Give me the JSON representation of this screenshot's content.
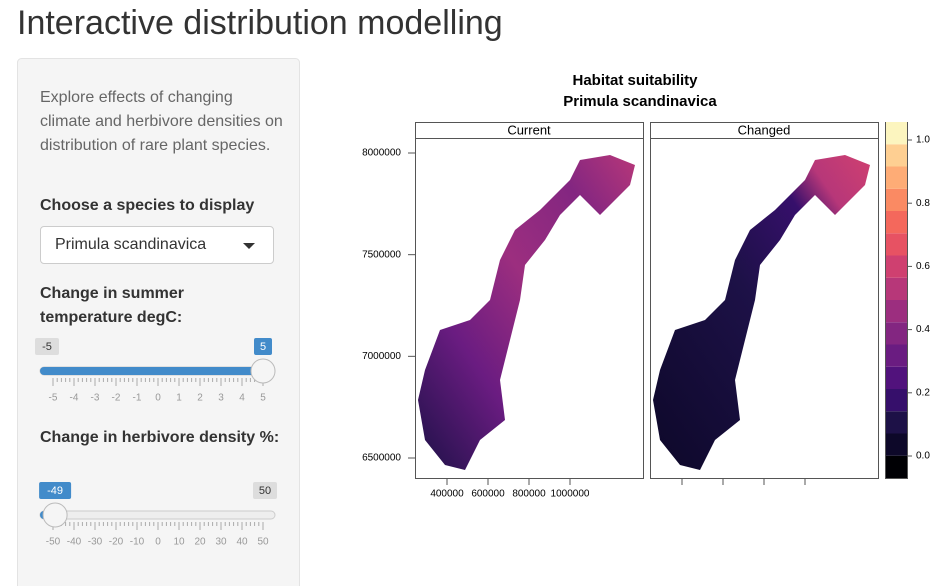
{
  "header": {
    "title": "Interactive distribution modelling"
  },
  "sidebar": {
    "description": "Explore effects of changing climate and herbivore densities on distribution of rare plant species.",
    "species_select": {
      "label": "Choose a species to display",
      "value": "Primula scandinavica"
    },
    "temperature_slider": {
      "label": "Change in summer temperature degC:",
      "min": -5,
      "max": 5,
      "value": 5,
      "ticks": [
        -5,
        -4,
        -3,
        -2,
        -1,
        0,
        1,
        2,
        3,
        4,
        5
      ]
    },
    "herbivore_slider": {
      "label": "Change in herbivore density %:",
      "min": -50,
      "max": 50,
      "value": -49,
      "ticks": [
        -50,
        -40,
        -30,
        -20,
        -10,
        0,
        10,
        20,
        30,
        40,
        50
      ]
    }
  },
  "plot": {
    "title": "Habitat suitability",
    "subtitle": "Primula scandinavica",
    "panels": [
      "Current",
      "Changed"
    ],
    "yticks": [
      6500000,
      7000000,
      7500000,
      8000000
    ],
    "xticks": [
      400000,
      600000,
      800000,
      1000000
    ],
    "colorbar_ticks": [
      {
        "value": 0,
        "label": "0.0"
      },
      {
        "value": 0.2,
        "label": "0.2"
      },
      {
        "value": 0.4,
        "label": "0.4"
      },
      {
        "value": 0.6,
        "label": "0.6"
      },
      {
        "value": 0.8,
        "label": "0.8"
      },
      {
        "value": 1,
        "label": "1.0"
      }
    ],
    "colors": [
      "#000004",
      "#0d0829",
      "#1d1147",
      "#360f6b",
      "#51127c",
      "#6a1c81",
      "#832681",
      "#9c2e7f",
      "#b73779",
      "#cf4070",
      "#e75263",
      "#f4685c",
      "#fa8a63",
      "#feac76",
      "#fecf92",
      "#fcf5bf"
    ]
  }
}
